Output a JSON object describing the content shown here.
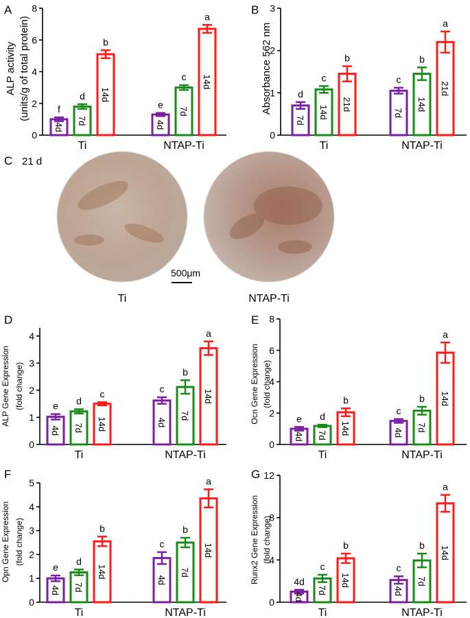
{
  "colors": {
    "p4": "#7b1fa2",
    "p7": "#1a8a1a",
    "p14": "#ff1a1a"
  },
  "panel_c": {
    "letter": "C",
    "timepoint": "21 d",
    "scale_label": "500μm",
    "labels": [
      "Ti",
      "NTAP-Ti"
    ]
  },
  "chart_data": [
    {
      "letter": "A",
      "type": "bar",
      "ylabel": [
        "ALP activity",
        "(units/g of total protein)"
      ],
      "ylim": [
        0,
        8
      ],
      "ticks": [
        0,
        2,
        4,
        6,
        8
      ],
      "groups": [
        "Ti",
        "NTAP-Ti"
      ],
      "series": [
        {
          "name": "4d",
          "label": "4d",
          "color": "#7b1fa2",
          "values": [
            1.0,
            1.3
          ],
          "errors": [
            0.12,
            0.1
          ],
          "letters": [
            "f",
            "e"
          ]
        },
        {
          "name": "7d",
          "label": "7d",
          "color": "#1a8a1a",
          "values": [
            1.8,
            3.0
          ],
          "errors": [
            0.15,
            0.15
          ],
          "letters": [
            "d",
            "c"
          ]
        },
        {
          "name": "14d",
          "label": "14d",
          "color": "#ff1a1a",
          "values": [
            5.1,
            6.7
          ],
          "errors": [
            0.25,
            0.25
          ],
          "letters": [
            "b",
            "a"
          ]
        }
      ]
    },
    {
      "letter": "B",
      "type": "bar",
      "ylabel": [
        "Absorbance 562 nm"
      ],
      "ylim": [
        0,
        3
      ],
      "ticks": [
        0,
        1,
        2,
        3
      ],
      "groups": [
        "Ti",
        "NTAP-Ti"
      ],
      "series": [
        {
          "name": "7d",
          "label": "7d",
          "color": "#7b1fa2",
          "values": [
            0.7,
            1.05
          ],
          "errors": [
            0.08,
            0.07
          ],
          "letters": [
            "d",
            "c"
          ]
        },
        {
          "name": "14d",
          "label": "14d",
          "color": "#1a8a1a",
          "values": [
            1.08,
            1.45
          ],
          "errors": [
            0.08,
            0.15
          ],
          "letters": [
            "c",
            "b"
          ]
        },
        {
          "name": "21d",
          "label": "21d",
          "color": "#ff1a1a",
          "values": [
            1.45,
            2.2
          ],
          "errors": [
            0.18,
            0.25
          ],
          "letters": [
            "b",
            "a"
          ]
        }
      ]
    },
    {
      "letter": "D",
      "type": "bar",
      "ylabel": [
        "ALP Gene Expression",
        "(fold change)"
      ],
      "ylim": [
        0,
        4.3
      ],
      "ticks": [
        0,
        1,
        2,
        3,
        4
      ],
      "groups": [
        "Ti",
        "NTAP-Ti"
      ],
      "series": [
        {
          "name": "4d",
          "label": "4d",
          "color": "#7b1fa2",
          "values": [
            1.02,
            1.62
          ],
          "errors": [
            0.1,
            0.12
          ],
          "letters": [
            "e",
            "c"
          ]
        },
        {
          "name": "7d",
          "label": "7d",
          "color": "#1a8a1a",
          "values": [
            1.22,
            2.12
          ],
          "errors": [
            0.08,
            0.25
          ],
          "letters": [
            "d",
            "b"
          ]
        },
        {
          "name": "14d",
          "label": "14d",
          "color": "#ff1a1a",
          "values": [
            1.5,
            3.55
          ],
          "errors": [
            0.06,
            0.25
          ],
          "letters": [
            "c",
            "a"
          ]
        }
      ]
    },
    {
      "letter": "E",
      "type": "bar",
      "ylabel": [
        "Ocn Gene Expression",
        "(fold change)"
      ],
      "ylim": [
        0,
        8
      ],
      "ticks": [
        0,
        2,
        4,
        6,
        8
      ],
      "groups": [
        "Ti",
        "NTAP-Ti"
      ],
      "series": [
        {
          "name": "4d",
          "label": "4d",
          "color": "#7b1fa2",
          "values": [
            1.0,
            1.5
          ],
          "errors": [
            0.12,
            0.12
          ],
          "letters": [
            "e",
            "c"
          ]
        },
        {
          "name": "7d",
          "label": "7d",
          "color": "#1a8a1a",
          "values": [
            1.18,
            2.15
          ],
          "errors": [
            0.08,
            0.25
          ],
          "letters": [
            "d",
            "b"
          ]
        },
        {
          "name": "14d",
          "label": "14d",
          "color": "#ff1a1a",
          "values": [
            2.05,
            5.85
          ],
          "errors": [
            0.25,
            0.65
          ],
          "letters": [
            "b",
            "a"
          ]
        }
      ]
    },
    {
      "letter": "F",
      "type": "bar",
      "ylabel": [
        "Opn Gene Expression",
        "(fold change)"
      ],
      "ylim": [
        0,
        5
      ],
      "ticks": [
        0,
        1,
        2,
        3,
        4,
        5
      ],
      "groups": [
        "Ti",
        "NTAP-Ti"
      ],
      "series": [
        {
          "name": "4d",
          "label": "4d",
          "color": "#7b1fa2",
          "values": [
            1.0,
            1.85
          ],
          "errors": [
            0.12,
            0.25
          ],
          "letters": [
            "e",
            "c"
          ]
        },
        {
          "name": "7d",
          "label": "7d",
          "color": "#1a8a1a",
          "values": [
            1.25,
            2.5
          ],
          "errors": [
            0.12,
            0.2
          ],
          "letters": [
            "d",
            "b"
          ]
        },
        {
          "name": "14d",
          "label": "14d",
          "color": "#ff1a1a",
          "values": [
            2.55,
            4.35
          ],
          "errors": [
            0.2,
            0.38
          ],
          "letters": [
            "b",
            "a"
          ]
        }
      ]
    },
    {
      "letter": "G",
      "type": "bar",
      "ylabel": [
        "Runx2 Gene Expression",
        "(fold change)"
      ],
      "ylim": [
        0,
        12
      ],
      "ticks": [
        0,
        4,
        8,
        12
      ],
      "groups": [
        "Ti",
        "NTAP-Ti"
      ],
      "series": [
        {
          "name": "4d",
          "label": "4d",
          "color": "#7b1fa2",
          "values": [
            1.0,
            2.1
          ],
          "errors": [
            0.18,
            0.35
          ],
          "letters": [
            "4d",
            "c"
          ]
        },
        {
          "name": "7d",
          "label": "7d",
          "color": "#1a8a1a",
          "values": [
            2.25,
            3.95
          ],
          "errors": [
            0.35,
            0.65
          ],
          "letters": [
            "c",
            "b"
          ]
        },
        {
          "name": "14d",
          "label": "14d",
          "color": "#ff1a1a",
          "values": [
            4.15,
            9.35
          ],
          "errors": [
            0.45,
            0.8
          ],
          "letters": [
            "b",
            "a"
          ]
        }
      ]
    }
  ]
}
